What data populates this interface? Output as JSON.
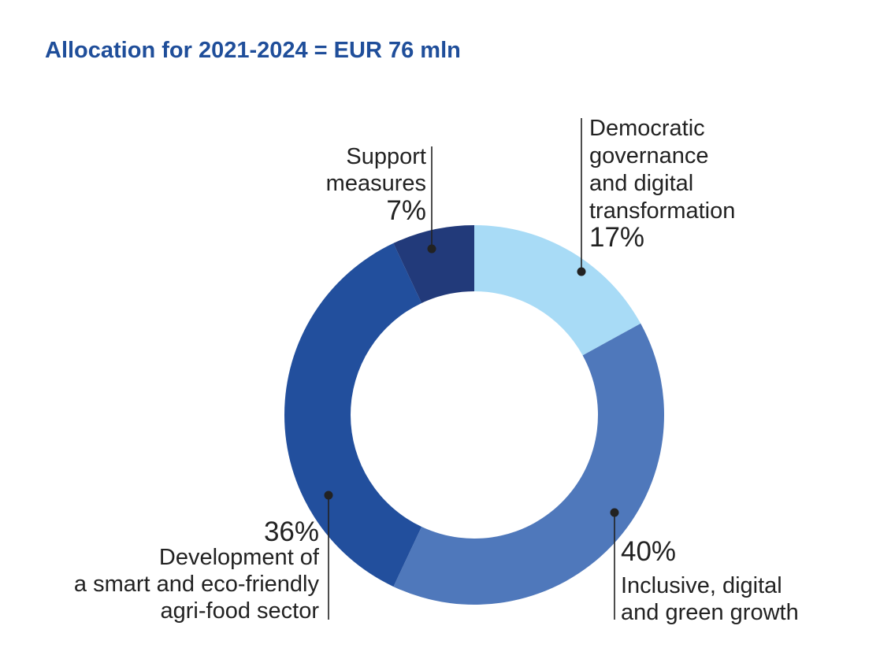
{
  "chart_data": {
    "type": "pie",
    "variant": "donut",
    "title": "Allocation for 2021-2024 = EUR 76 mln",
    "slices": [
      {
        "label": "Democratic governance and digital transformation",
        "label_lines": [
          "Democratic",
          "governance",
          "and digital",
          "transformation"
        ],
        "value": 17,
        "value_label": "17%",
        "color": "#a8dbf6"
      },
      {
        "label": "Inclusive, digital and green growth",
        "label_lines": [
          "Inclusive, digital",
          "and green growth"
        ],
        "value": 40,
        "value_label": "40%",
        "color": "#4f78bb"
      },
      {
        "label": "Development of a smart and eco-friendly agri-food sector",
        "label_lines": [
          "Development of",
          "a smart and eco-friendly",
          "agri-food sector"
        ],
        "value": 36,
        "value_label": "36%",
        "color": "#224f9d"
      },
      {
        "label": "Support measures",
        "label_lines": [
          "Support",
          "measures"
        ],
        "value": 7,
        "value_label": "7%",
        "color": "#223a7a"
      }
    ]
  }
}
